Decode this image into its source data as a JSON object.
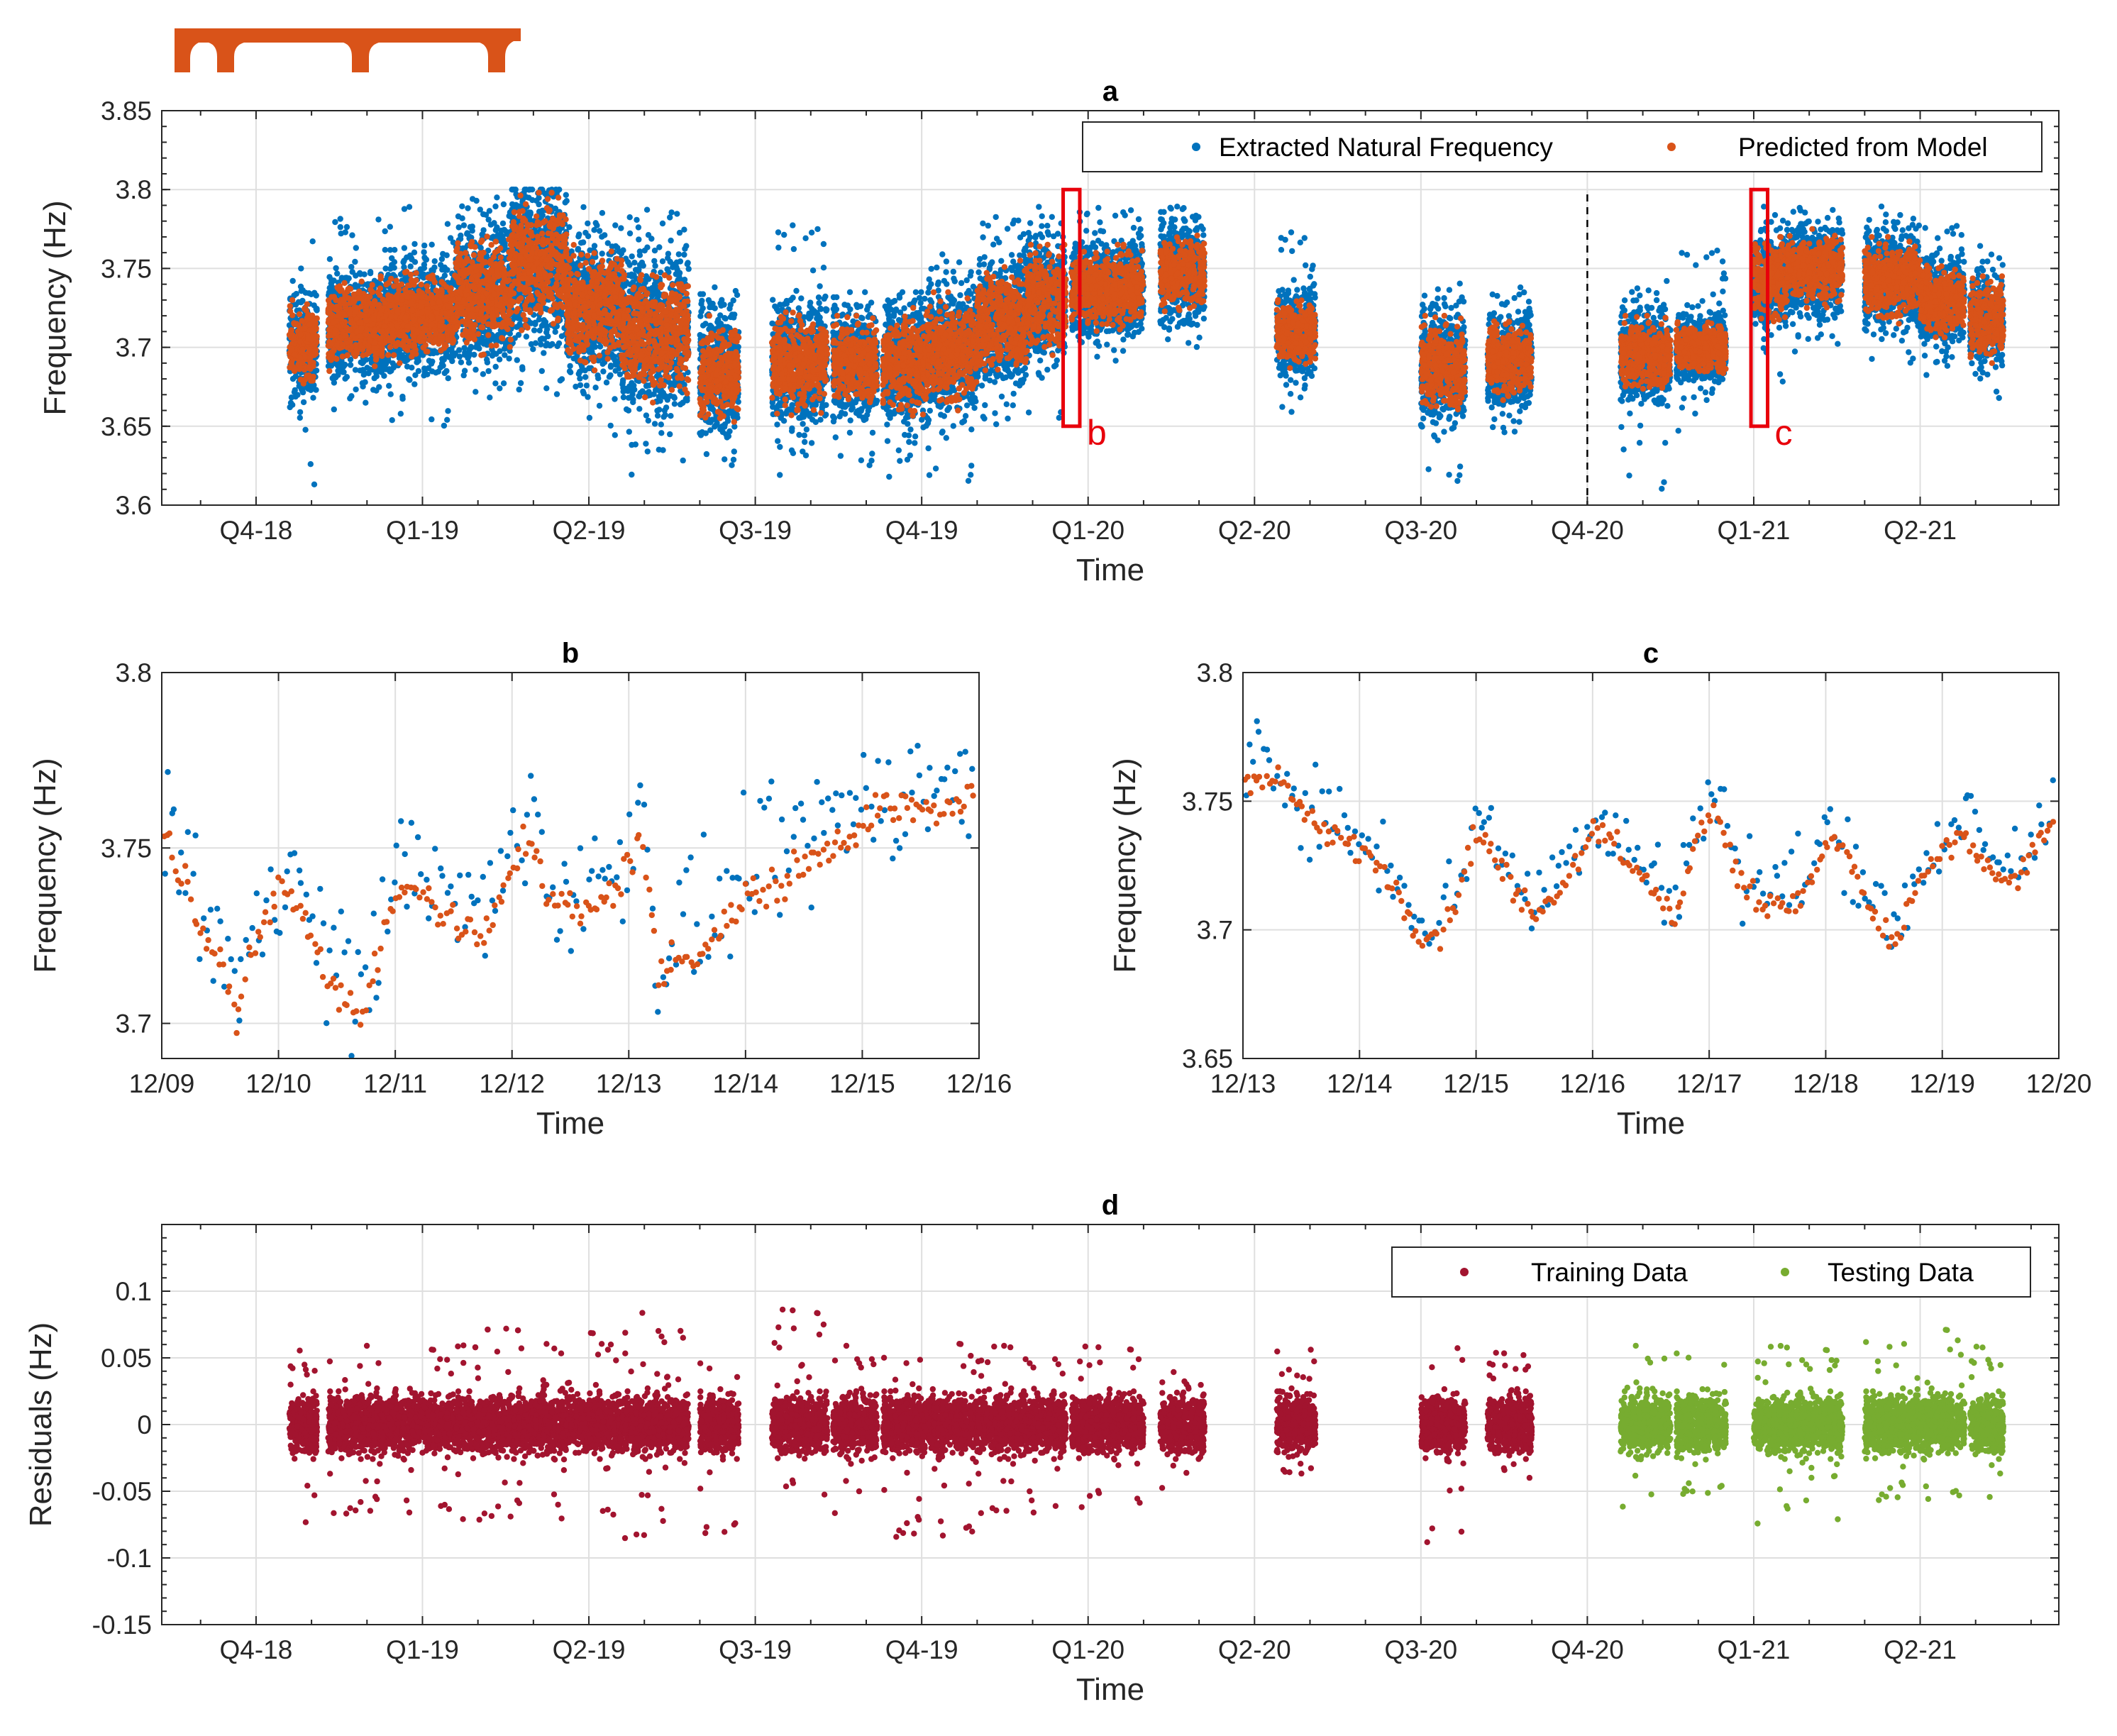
{
  "colors": {
    "extracted": "#0072BD",
    "predicted": "#D95319",
    "training": "#A2142F",
    "testing": "#77AC30",
    "grid": "#dfdfdf",
    "axis": "#262626",
    "highlight": "#e8000b",
    "bridge_icon": "#D95319"
  },
  "icons": {
    "bridge": "bridge-icon"
  },
  "chart_data": [
    {
      "id": "a",
      "type": "scatter",
      "title": "a",
      "xlabel": "Time",
      "ylabel": "Frequency (Hz)",
      "x_unit": "months since 2018-10-01",
      "x_ticks": [
        0,
        3,
        6,
        9,
        12,
        15,
        18,
        21,
        24,
        27,
        30
      ],
      "x_tick_labels": [
        "Q4-18",
        "Q1-19",
        "Q2-19",
        "Q3-19",
        "Q4-19",
        "Q1-20",
        "Q2-20",
        "Q3-20",
        "Q4-20",
        "Q1-21",
        "Q2-21"
      ],
      "xlim": [
        -1.7,
        32.5
      ],
      "y_ticks": [
        3.6,
        3.65,
        3.7,
        3.75,
        3.8,
        3.85
      ],
      "y_tick_labels": [
        "3.6",
        "3.65",
        "3.7",
        "3.75",
        "3.8",
        "3.85"
      ],
      "ylim": [
        3.6,
        3.85
      ],
      "grid": true,
      "legend": "top-right",
      "series": [
        {
          "name": "Extracted Natural Frequency",
          "color_key": "extracted"
        },
        {
          "name": "Predicted from Model",
          "color_key": "predicted"
        }
      ],
      "segments": [
        {
          "x0": 0.6,
          "x1": 1.1,
          "pred": [
            3.672,
            3.73
          ],
          "ext": [
            3.61,
            3.79
          ]
        },
        {
          "x0": 1.3,
          "x1": 2.4,
          "pred": [
            3.685,
            3.745
          ],
          "ext": [
            3.655,
            3.785
          ]
        },
        {
          "x0": 2.4,
          "x1": 3.6,
          "pred": [
            3.69,
            3.75
          ],
          "ext": [
            3.65,
            3.79
          ]
        },
        {
          "x0": 3.6,
          "x1": 4.6,
          "pred": [
            3.695,
            3.775
          ],
          "ext": [
            3.665,
            3.795
          ]
        },
        {
          "x0": 4.6,
          "x1": 5.6,
          "pred": [
            3.71,
            3.798
          ],
          "ext": [
            3.67,
            3.8
          ]
        },
        {
          "x0": 5.6,
          "x1": 6.6,
          "pred": [
            3.685,
            3.765
          ],
          "ext": [
            3.64,
            3.79
          ]
        },
        {
          "x0": 6.6,
          "x1": 7.8,
          "pred": [
            3.665,
            3.755
          ],
          "ext": [
            3.615,
            3.79
          ]
        },
        {
          "x0": 8.0,
          "x1": 8.7,
          "pred": [
            3.65,
            3.72
          ],
          "ext": [
            3.625,
            3.755
          ]
        },
        {
          "x0": 9.3,
          "x1": 10.3,
          "pred": [
            3.655,
            3.725
          ],
          "ext": [
            3.615,
            3.78
          ]
        },
        {
          "x0": 10.4,
          "x1": 11.2,
          "pred": [
            3.66,
            3.72
          ],
          "ext": [
            3.625,
            3.735
          ]
        },
        {
          "x0": 11.3,
          "x1": 12.1,
          "pred": [
            3.655,
            3.725
          ],
          "ext": [
            3.615,
            3.735
          ]
        },
        {
          "x0": 12.1,
          "x1": 13.0,
          "pred": [
            3.66,
            3.735
          ],
          "ext": [
            3.615,
            3.76
          ]
        },
        {
          "x0": 13.0,
          "x1": 13.9,
          "pred": [
            3.68,
            3.755
          ],
          "ext": [
            3.635,
            3.785
          ]
        },
        {
          "x0": 13.9,
          "x1": 14.6,
          "pred": [
            3.695,
            3.765
          ],
          "ext": [
            3.655,
            3.79
          ]
        },
        {
          "x0": 14.7,
          "x1": 16.0,
          "pred": [
            3.71,
            3.765
          ],
          "ext": [
            3.69,
            3.79
          ]
        },
        {
          "x0": 16.3,
          "x1": 17.1,
          "pred": [
            3.72,
            3.775
          ],
          "ext": [
            3.7,
            3.79
          ]
        },
        {
          "x0": 18.4,
          "x1": 19.1,
          "pred": [
            3.685,
            3.735
          ],
          "ext": [
            3.645,
            3.775
          ]
        },
        {
          "x0": 21.0,
          "x1": 21.8,
          "pred": [
            3.655,
            3.72
          ],
          "ext": [
            3.615,
            3.752
          ]
        },
        {
          "x0": 22.2,
          "x1": 23.0,
          "pred": [
            3.665,
            3.72
          ],
          "ext": [
            3.635,
            3.738
          ]
        },
        {
          "x0": 24.6,
          "x1": 25.5,
          "pred": [
            3.67,
            3.72
          ],
          "ext": [
            3.61,
            3.765
          ]
        },
        {
          "x0": 25.6,
          "x1": 26.5,
          "pred": [
            3.68,
            3.72
          ],
          "ext": [
            3.645,
            3.765
          ]
        },
        {
          "x0": 27.0,
          "x1": 27.6,
          "pred": [
            3.715,
            3.77
          ],
          "ext": [
            3.675,
            3.79
          ]
        },
        {
          "x0": 27.6,
          "x1": 28.6,
          "pred": [
            3.725,
            3.775
          ],
          "ext": [
            3.695,
            3.79
          ]
        },
        {
          "x0": 29.0,
          "x1": 30.0,
          "pred": [
            3.715,
            3.77
          ],
          "ext": [
            3.69,
            3.79
          ]
        },
        {
          "x0": 30.0,
          "x1": 30.8,
          "pred": [
            3.705,
            3.755
          ],
          "ext": [
            3.68,
            3.78
          ]
        },
        {
          "x0": 30.9,
          "x1": 31.5,
          "pred": [
            3.69,
            3.745
          ],
          "ext": [
            3.665,
            3.765
          ]
        }
      ],
      "dashed_vline_x": 24.0,
      "highlight_boxes": [
        {
          "label": "b",
          "x0": 14.55,
          "x1": 14.85,
          "y0": 3.65,
          "y1": 3.8
        },
        {
          "label": "c",
          "x0": 26.95,
          "x1": 27.25,
          "y0": 3.65,
          "y1": 3.8
        }
      ]
    },
    {
      "id": "b",
      "type": "scatter",
      "title": "b",
      "xlabel": "Time",
      "ylabel": "Frequency (Hz)",
      "x_ticks": [
        0,
        1,
        2,
        3,
        4,
        5,
        6,
        7
      ],
      "x_tick_labels": [
        "12/09",
        "12/10",
        "12/11",
        "12/12",
        "12/13",
        "12/14",
        "12/15",
        "12/16"
      ],
      "xlim": [
        0,
        7
      ],
      "y_ticks": [
        3.7,
        3.75,
        3.8
      ],
      "y_tick_labels": [
        "3.7",
        "3.75",
        "3.8"
      ],
      "ylim": [
        3.69,
        3.8
      ],
      "grid": true,
      "series": [
        {
          "name": "Extracted Natural Frequency",
          "color_key": "extracted"
        },
        {
          "name": "Predicted from Model",
          "color_key": "predicted"
        }
      ],
      "predicted_trend": [
        [
          0.0,
          3.755
        ],
        [
          0.25,
          3.735
        ],
        [
          0.4,
          3.725
        ],
        [
          0.5,
          3.72
        ],
        [
          0.65,
          3.7
        ],
        [
          0.8,
          3.722
        ],
        [
          1.0,
          3.74
        ],
        [
          1.15,
          3.735
        ],
        [
          1.3,
          3.722
        ],
        [
          1.5,
          3.71
        ],
        [
          1.7,
          3.702
        ],
        [
          1.85,
          3.72
        ],
        [
          2.0,
          3.735
        ],
        [
          2.2,
          3.742
        ],
        [
          2.4,
          3.73
        ],
        [
          2.6,
          3.727
        ],
        [
          2.8,
          3.725
        ],
        [
          3.0,
          3.745
        ],
        [
          3.15,
          3.755
        ],
        [
          3.3,
          3.737
        ],
        [
          3.6,
          3.73
        ],
        [
          3.8,
          3.735
        ],
        [
          4.0,
          3.745
        ],
        [
          4.1,
          3.755
        ],
        [
          4.25,
          3.715
        ],
        [
          4.5,
          3.72
        ],
        [
          4.65,
          3.722
        ],
        [
          4.8,
          3.728
        ],
        [
          5.0,
          3.735
        ],
        [
          5.3,
          3.74
        ],
        [
          5.6,
          3.748
        ],
        [
          5.9,
          3.755
        ],
        [
          6.2,
          3.762
        ],
        [
          6.6,
          3.76
        ],
        [
          7.0,
          3.765
        ]
      ],
      "predicted_spread": 0.008,
      "extracted_spread": 0.025
    },
    {
      "id": "c",
      "type": "scatter",
      "title": "c",
      "xlabel": "Time",
      "ylabel": "Frequency (Hz)",
      "x_ticks": [
        0,
        1,
        2,
        3,
        4,
        5,
        6,
        7
      ],
      "x_tick_labels": [
        "12/13",
        "12/14",
        "12/15",
        "12/16",
        "12/17",
        "12/18",
        "12/19",
        "12/20"
      ],
      "xlim": [
        0,
        7
      ],
      "y_ticks": [
        3.65,
        3.7,
        3.75,
        3.8
      ],
      "y_tick_labels": [
        "3.65",
        "3.7",
        "3.75",
        "3.8"
      ],
      "ylim": [
        3.65,
        3.8
      ],
      "grid": true,
      "series": [
        {
          "name": "Extracted Natural Frequency",
          "color_key": "extracted"
        },
        {
          "name": "Predicted from Model",
          "color_key": "predicted"
        }
      ],
      "predicted_trend": [
        [
          0.0,
          3.76
        ],
        [
          0.35,
          3.757
        ],
        [
          0.6,
          3.74
        ],
        [
          0.9,
          3.733
        ],
        [
          1.2,
          3.725
        ],
        [
          1.5,
          3.7
        ],
        [
          1.7,
          3.698
        ],
        [
          1.9,
          3.722
        ],
        [
          2.0,
          3.74
        ],
        [
          2.2,
          3.725
        ],
        [
          2.4,
          3.71
        ],
        [
          2.6,
          3.708
        ],
        [
          2.8,
          3.722
        ],
        [
          3.0,
          3.74
        ],
        [
          3.2,
          3.735
        ],
        [
          3.4,
          3.72
        ],
        [
          3.7,
          3.705
        ],
        [
          3.9,
          3.735
        ],
        [
          4.05,
          3.748
        ],
        [
          4.2,
          3.725
        ],
        [
          4.4,
          3.712
        ],
        [
          4.7,
          3.71
        ],
        [
          4.9,
          3.72
        ],
        [
          5.0,
          3.735
        ],
        [
          5.2,
          3.728
        ],
        [
          5.4,
          3.705
        ],
        [
          5.6,
          3.695
        ],
        [
          5.8,
          3.72
        ],
        [
          6.0,
          3.73
        ],
        [
          6.2,
          3.735
        ],
        [
          6.4,
          3.722
        ],
        [
          6.6,
          3.718
        ],
        [
          6.8,
          3.73
        ],
        [
          7.0,
          3.745
        ]
      ],
      "predicted_spread": 0.008,
      "extracted_spread": 0.022
    },
    {
      "id": "d",
      "type": "scatter",
      "title": "d",
      "xlabel": "Time",
      "ylabel": "Residuals (Hz)",
      "x_ticks": [
        0,
        3,
        6,
        9,
        12,
        15,
        18,
        21,
        24,
        27,
        30
      ],
      "x_tick_labels": [
        "Q4-18",
        "Q1-19",
        "Q2-19",
        "Q3-19",
        "Q4-19",
        "Q1-20",
        "Q2-20",
        "Q3-20",
        "Q4-20",
        "Q1-21",
        "Q2-21"
      ],
      "xlim": [
        -1.7,
        32.5
      ],
      "y_ticks": [
        -0.15,
        -0.1,
        -0.05,
        0,
        0.05,
        0.1
      ],
      "y_tick_labels": [
        "-0.15",
        "-0.1",
        "-0.05",
        "0",
        "0.05",
        "0.1"
      ],
      "ylim": [
        -0.15,
        0.15
      ],
      "grid": true,
      "legend": "top-right",
      "series": [
        {
          "name": "Training Data",
          "color_key": "training"
        },
        {
          "name": "Testing Data",
          "color_key": "testing"
        }
      ],
      "segments": [
        {
          "x0": 0.6,
          "x1": 1.1,
          "range": [
            -0.097,
            0.058
          ],
          "set": "training"
        },
        {
          "x0": 1.3,
          "x1": 3.6,
          "range": [
            -0.07,
            0.06
          ],
          "set": "training"
        },
        {
          "x0": 3.6,
          "x1": 6.6,
          "range": [
            -0.075,
            0.073
          ],
          "set": "training"
        },
        {
          "x0": 6.6,
          "x1": 7.8,
          "range": [
            -0.09,
            0.085
          ],
          "set": "training"
        },
        {
          "x0": 8.0,
          "x1": 8.7,
          "range": [
            -0.085,
            0.06
          ],
          "set": "training"
        },
        {
          "x0": 9.3,
          "x1": 10.3,
          "range": [
            -0.06,
            0.088
          ],
          "set": "training"
        },
        {
          "x0": 10.4,
          "x1": 11.2,
          "range": [
            -0.07,
            0.06
          ],
          "set": "training"
        },
        {
          "x0": 11.3,
          "x1": 13.0,
          "range": [
            -0.088,
            0.065
          ],
          "set": "training"
        },
        {
          "x0": 13.0,
          "x1": 14.6,
          "range": [
            -0.07,
            0.06
          ],
          "set": "training"
        },
        {
          "x0": 14.7,
          "x1": 16.0,
          "range": [
            -0.065,
            0.06
          ],
          "set": "training"
        },
        {
          "x0": 16.3,
          "x1": 17.1,
          "range": [
            -0.05,
            0.04
          ],
          "set": "training"
        },
        {
          "x0": 18.4,
          "x1": 19.1,
          "range": [
            -0.04,
            0.065
          ],
          "set": "training"
        },
        {
          "x0": 21.0,
          "x1": 21.8,
          "range": [
            -0.092,
            0.062
          ],
          "set": "training"
        },
        {
          "x0": 22.2,
          "x1": 23.0,
          "range": [
            -0.045,
            0.055
          ],
          "set": "training"
        },
        {
          "x0": 24.6,
          "x1": 25.5,
          "range": [
            -0.065,
            0.06
          ],
          "set": "testing"
        },
        {
          "x0": 25.6,
          "x1": 26.5,
          "range": [
            -0.055,
            0.065
          ],
          "set": "testing"
        },
        {
          "x0": 27.0,
          "x1": 28.6,
          "range": [
            -0.078,
            0.06
          ],
          "set": "testing"
        },
        {
          "x0": 29.0,
          "x1": 30.8,
          "range": [
            -0.06,
            0.075
          ],
          "set": "testing"
        },
        {
          "x0": 30.9,
          "x1": 31.5,
          "range": [
            -0.075,
            0.06
          ],
          "set": "testing"
        }
      ]
    }
  ]
}
